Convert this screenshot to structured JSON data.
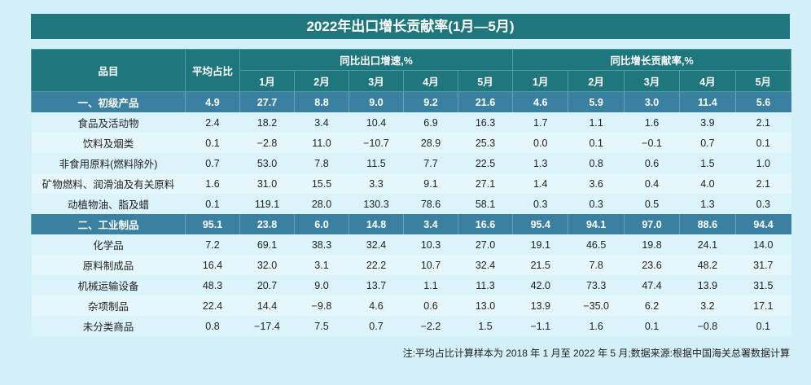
{
  "title": "2022年出口增长贡献率(1月—5月)",
  "headers": {
    "item": "品目",
    "avg": "平均占比",
    "growth": "同比出口增速,%",
    "contrib": "同比增长贡献率,%",
    "months": [
      "1月",
      "2月",
      "3月",
      "4月",
      "5月"
    ]
  },
  "rows": [
    {
      "type": "cat",
      "name": "一、初级产品",
      "avg": "4.9",
      "growth": [
        "27.7",
        "8.8",
        "9.0",
        "9.2",
        "21.6"
      ],
      "contrib": [
        "4.6",
        "5.9",
        "3.0",
        "11.4",
        "5.6"
      ]
    },
    {
      "type": "r",
      "name": "食品及活动物",
      "avg": "2.4",
      "growth": [
        "18.2",
        "3.4",
        "10.4",
        "6.9",
        "16.3"
      ],
      "contrib": [
        "1.7",
        "1.1",
        "1.6",
        "3.9",
        "2.1"
      ]
    },
    {
      "type": "r",
      "name": "饮料及烟类",
      "avg": "0.1",
      "growth": [
        "−2.8",
        "11.0",
        "−10.7",
        "28.9",
        "25.3"
      ],
      "contrib": [
        "0.0",
        "0.1",
        "−0.1",
        "0.7",
        "0.1"
      ]
    },
    {
      "type": "r",
      "name": "非食用原料(燃料除外)",
      "avg": "0.7",
      "growth": [
        "53.0",
        "7.8",
        "11.5",
        "7.7",
        "22.5"
      ],
      "contrib": [
        "1.3",
        "0.8",
        "0.6",
        "1.5",
        "1.0"
      ]
    },
    {
      "type": "r",
      "name": "矿物燃料、润滑油及有关原料",
      "avg": "1.6",
      "growth": [
        "31.0",
        "15.5",
        "3.3",
        "9.1",
        "27.1"
      ],
      "contrib": [
        "1.4",
        "3.6",
        "0.4",
        "4.0",
        "2.1"
      ]
    },
    {
      "type": "r",
      "name": "动植物油、脂及蜡",
      "avg": "0.1",
      "growth": [
        "119.1",
        "28.0",
        "130.3",
        "78.6",
        "58.1"
      ],
      "contrib": [
        "0.3",
        "0.3",
        "0.5",
        "1.3",
        "0.3"
      ]
    },
    {
      "type": "cat",
      "name": "二、工业制品",
      "avg": "95.1",
      "growth": [
        "23.8",
        "6.0",
        "14.8",
        "3.4",
        "16.6"
      ],
      "contrib": [
        "95.4",
        "94.1",
        "97.0",
        "88.6",
        "94.4"
      ]
    },
    {
      "type": "r",
      "name": "化学品",
      "avg": "7.2",
      "growth": [
        "69.1",
        "38.3",
        "32.4",
        "10.3",
        "27.0"
      ],
      "contrib": [
        "19.1",
        "46.5",
        "19.8",
        "24.1",
        "14.0"
      ]
    },
    {
      "type": "r",
      "name": "原料制成品",
      "avg": "16.4",
      "growth": [
        "32.0",
        "3.1",
        "22.2",
        "10.7",
        "32.4"
      ],
      "contrib": [
        "21.5",
        "7.8",
        "23.6",
        "48.2",
        "31.7"
      ]
    },
    {
      "type": "r",
      "name": "机械运输设备",
      "avg": "48.3",
      "growth": [
        "20.7",
        "9.0",
        "13.7",
        "1.1",
        "11.3"
      ],
      "contrib": [
        "42.0",
        "73.3",
        "47.4",
        "13.9",
        "31.5"
      ]
    },
    {
      "type": "r",
      "name": "杂项制品",
      "avg": "22.4",
      "growth": [
        "14.4",
        "−9.8",
        "4.6",
        "0.6",
        "13.0"
      ],
      "contrib": [
        "13.9",
        "−35.0",
        "6.2",
        "3.2",
        "17.1"
      ]
    },
    {
      "type": "r",
      "name": "未分类商品",
      "avg": "0.8",
      "growth": [
        "−17.4",
        "7.5",
        "0.7",
        "−2.2",
        "1.5"
      ],
      "contrib": [
        "−1.1",
        "1.6",
        "0.1",
        "−0.8",
        "0.1"
      ]
    }
  ],
  "note": "注:平均占比计算样本为 2018 年 1 月至 2022 年 5 月;数据来源:根据中国海关总署数据计算"
}
